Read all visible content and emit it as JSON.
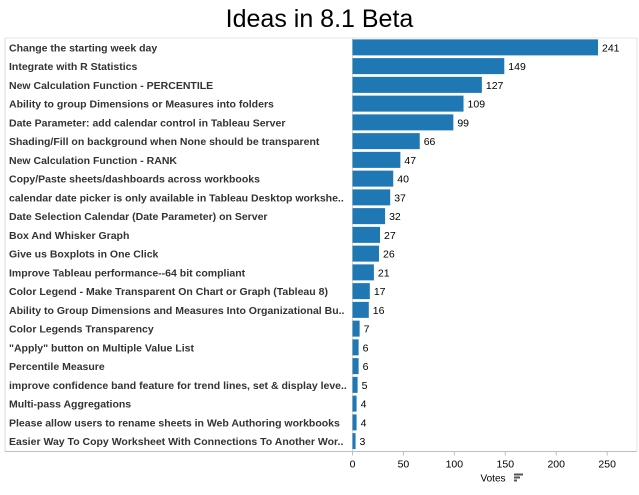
{
  "chart_data": {
    "type": "bar",
    "orientation": "horizontal",
    "title": "Ideas in 8.1 Beta",
    "xlabel": "Votes",
    "ylabel": "",
    "xlim": [
      0,
      275
    ],
    "ticks": [
      0,
      50,
      100,
      150,
      200,
      250
    ],
    "bar_color": "#1f77b4",
    "sort_icon": "sort-descending-icon",
    "categories": [
      "Change the starting week day",
      "Integrate with R Statistics",
      "New Calculation Function - PERCENTILE",
      "Ability to group Dimensions or Measures into folders",
      "Date Parameter: add calendar control in Tableau Server",
      "Shading/Fill on background when None should be transparent",
      "New Calculation Function - RANK",
      "Copy/Paste sheets/dashboards across workbooks",
      "calendar date picker is only available in Tableau Desktop workshe..",
      "Date Selection Calendar (Date Parameter) on Server",
      "Box And Whisker Graph",
      "Give us Boxplots in One Click",
      "Improve Tableau performance--64 bit compliant",
      "Color Legend - Make Transparent On Chart or Graph (Tableau 8)",
      "Ability to Group Dimensions and Measures Into Organizational Bu..",
      "Color Legends Transparency",
      "\"Apply\" button on Multiple Value List",
      "Percentile Measure",
      "improve confidence band feature for trend lines, set & display leve..",
      "Multi-pass Aggregations",
      "Please allow users to rename sheets in Web Authoring workbooks",
      "Easier Way To Copy Worksheet With Connections To Another Wor.."
    ],
    "values": [
      241,
      149,
      127,
      109,
      99,
      66,
      47,
      40,
      37,
      32,
      27,
      26,
      21,
      17,
      16,
      7,
      6,
      6,
      5,
      4,
      4,
      3
    ]
  }
}
